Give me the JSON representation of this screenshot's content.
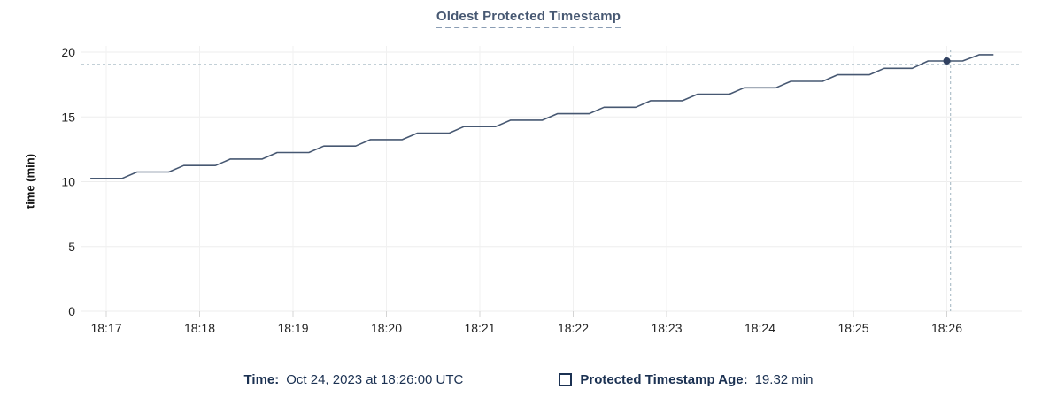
{
  "title": "Oldest Protected Timestamp",
  "chart_data": {
    "type": "line",
    "title": "Oldest Protected Timestamp",
    "xlabel": "",
    "ylabel": "time (min)",
    "x_ticks": [
      "18:17",
      "18:18",
      "18:19",
      "18:20",
      "18:21",
      "18:22",
      "18:23",
      "18:24",
      "18:25",
      "18:26"
    ],
    "y_ticks": [
      0,
      5,
      10,
      15,
      20
    ],
    "ylim": [
      0,
      20
    ],
    "grid": true,
    "legend_position": "bottom",
    "series": [
      {
        "name": "Protected Timestamp Age",
        "unit": "min",
        "points": [
          [
            -0.17,
            10.25
          ],
          [
            0.17,
            10.25
          ],
          [
            0.33,
            10.75
          ],
          [
            0.67,
            10.75
          ],
          [
            0.83,
            11.25
          ],
          [
            1.17,
            11.25
          ],
          [
            1.33,
            11.75
          ],
          [
            1.67,
            11.75
          ],
          [
            1.83,
            12.25
          ],
          [
            2.17,
            12.25
          ],
          [
            2.33,
            12.75
          ],
          [
            2.67,
            12.75
          ],
          [
            2.83,
            13.25
          ],
          [
            3.17,
            13.25
          ],
          [
            3.33,
            13.75
          ],
          [
            3.67,
            13.75
          ],
          [
            3.83,
            14.25
          ],
          [
            4.17,
            14.25
          ],
          [
            4.33,
            14.75
          ],
          [
            4.67,
            14.75
          ],
          [
            4.83,
            15.25
          ],
          [
            5.17,
            15.25
          ],
          [
            5.33,
            15.75
          ],
          [
            5.67,
            15.75
          ],
          [
            5.83,
            16.25
          ],
          [
            6.17,
            16.25
          ],
          [
            6.33,
            16.75
          ],
          [
            6.67,
            16.75
          ],
          [
            6.83,
            17.25
          ],
          [
            7.17,
            17.25
          ],
          [
            7.33,
            17.75
          ],
          [
            7.67,
            17.75
          ],
          [
            7.83,
            18.25
          ],
          [
            8.17,
            18.25
          ],
          [
            8.33,
            18.75
          ],
          [
            8.63,
            18.75
          ],
          [
            8.8,
            19.32
          ],
          [
            9.17,
            19.32
          ],
          [
            9.35,
            19.8
          ],
          [
            9.5,
            19.8
          ]
        ]
      }
    ],
    "hover": {
      "time_label": "Oct 24, 2023 at 18:26:00 UTC",
      "value_label": "19.32 min",
      "t": 9.0,
      "value": 19.32,
      "crosshair_t": 9.04,
      "hline_value": 19.05
    }
  },
  "legend": {
    "time_key": "Time:",
    "time_value": "Oct 24, 2023 at 18:26:00 UTC",
    "series_key": "Protected Timestamp Age:",
    "series_value": "19.32 min"
  },
  "colors": {
    "line": "#475872",
    "dot": "#304060",
    "title": "#475872",
    "title_underline": "#8a9db4",
    "legend_text": "#1b3152",
    "grid": "#ededed",
    "grid_v": "#f1f1f1",
    "tick": "#d4d4d4",
    "axis_text": "#242424",
    "crosshair": "#9fb3bf"
  }
}
